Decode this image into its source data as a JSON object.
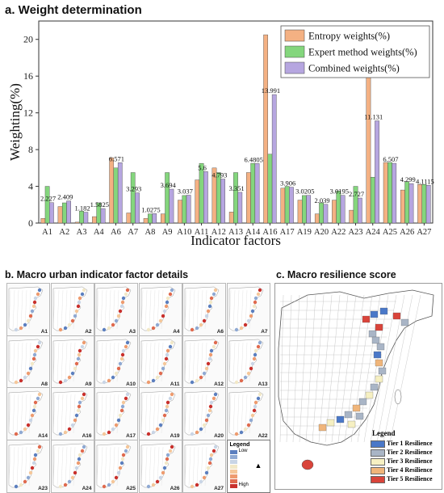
{
  "panel_a": {
    "title": "a. Weight determination"
  },
  "panel_b": {
    "title": "b. Macro urban indicator factor details",
    "thumbnails": [
      "A1",
      "A2",
      "A3",
      "A4",
      "A6",
      "A7",
      "A8",
      "A9",
      "A10",
      "A11",
      "A12",
      "A13",
      "A14",
      "A16",
      "A17",
      "A19",
      "A20",
      "A22",
      "A23",
      "A24",
      "A25",
      "A26",
      "A27"
    ],
    "legend": {
      "title": "Legend",
      "low": "Low",
      "high": "High"
    },
    "colors": [
      "#5b7fbf",
      "#8fa9d3",
      "#c9d5e6",
      "#f2e8c7",
      "#f5c79a",
      "#ee9b6f",
      "#e06a4e",
      "#c9302c"
    ]
  },
  "panel_c": {
    "title": "c. Macro resilience score",
    "legend": {
      "title": "Legend",
      "tiers": [
        {
          "label": "Tier 1 Resilience",
          "color": "#4a78c8"
        },
        {
          "label": "Tier 2 Resilience",
          "color": "#a9b5c6"
        },
        {
          "label": "Tier 3 Resilience",
          "color": "#f6f0c2"
        },
        {
          "label": "Tier 4 Resilience",
          "color": "#f0b57a"
        },
        {
          "label": "Tier 5 Resilience",
          "color": "#d9443a"
        }
      ]
    }
  },
  "chart_data": {
    "type": "bar",
    "title": "a. Weight determination",
    "xlabel": "Indicator factors",
    "ylabel": "Weighting(%)",
    "ylim": [
      0,
      22
    ],
    "yticks": [
      0,
      4,
      8,
      12,
      16,
      20
    ],
    "grid": false,
    "legend_position": "top-right",
    "categories": [
      "A1",
      "A2",
      "A3",
      "A4",
      "A6",
      "A7",
      "A8",
      "A9",
      "A10",
      "A11",
      "A12",
      "A13",
      "A14",
      "A16",
      "A17",
      "A19",
      "A20",
      "A22",
      "A23",
      "A24",
      "A25",
      "A26",
      "A27"
    ],
    "series": [
      {
        "name": "Entropy weights(%)",
        "color": "#f4b183",
        "values": [
          0.5,
          1.8,
          0.1,
          0.7,
          7.1,
          1.1,
          0.5,
          1.0,
          2.5,
          4.7,
          6.0,
          1.2,
          5.5,
          20.5,
          3.8,
          2.5,
          1.0,
          2.5,
          1.4,
          17.2,
          6.6,
          3.6,
          4.2
        ]
      },
      {
        "name": "Expert method weights(%)",
        "color": "#84d67d",
        "values": [
          4.0,
          2.2,
          1.3,
          2.2,
          6.0,
          5.5,
          1.0,
          5.5,
          3.0,
          6.5,
          5.5,
          5.5,
          6.5,
          7.5,
          4.0,
          3.0,
          2.2,
          3.5,
          4.0,
          5.0,
          6.6,
          4.5,
          4.2
        ]
      },
      {
        "name": "Combined weights(%)",
        "color": "#b6a6e0",
        "values": [
          2.227,
          2.409,
          1.182,
          1.5825,
          6.571,
          3.293,
          1.0275,
          3.694,
          3.037,
          5.6,
          4.793,
          3.351,
          6.4805,
          13.991,
          3.906,
          3.0205,
          2.039,
          3.0195,
          2.727,
          11.131,
          6.507,
          4.299,
          4.1115
        ]
      }
    ],
    "data_labels": {
      "A1": "2.227",
      "A2": "2.409",
      "A3": "1.182",
      "A4": "1.5825",
      "A6": "6.571",
      "A7": "3.293",
      "A8": "1.0275",
      "A9": "3.694",
      "A10": "3.037",
      "A11": "5.6",
      "A12": "4.793",
      "A13": "3.351",
      "A14": "6.4805",
      "A16": "13.991",
      "A17": "3.906",
      "A19": "3.0205",
      "A20": "2.039",
      "A22": "3.0195",
      "A23": "2.727",
      "A24": "11.131",
      "A25": "6.507",
      "A26": "4.299",
      "A27": "4.1115"
    }
  }
}
